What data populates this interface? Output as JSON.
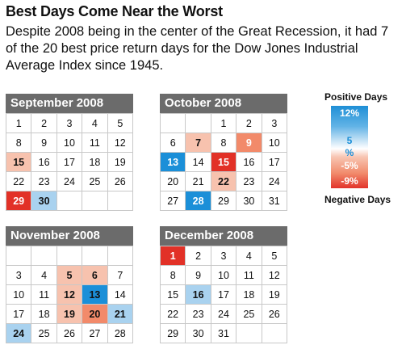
{
  "title": "Best Days Come Near the Worst",
  "subtitle": "Despite 2008 being in the center of the Great Recession, it had 7 of the 20 best price return days for the Dow Jones Industrial Average Index since 1945.",
  "legend": {
    "positive_label": "Positive Days",
    "negative_label": "Negative Days",
    "ticks": [
      "12%",
      "5",
      "%",
      "-5%",
      "-9%"
    ]
  },
  "colors": {
    "strong_blue": "#1b8fd8",
    "light_blue": "#a9d2ef",
    "light_red": "#f7c2ae",
    "mid_red": "#f28a6a",
    "strong_red": "#e23127",
    "header_grey": "#6b6b6b"
  },
  "calendars": [
    {
      "month": "September 2008",
      "cells": [
        {
          "d": "1"
        },
        {
          "d": "2"
        },
        {
          "d": "3"
        },
        {
          "d": "4"
        },
        {
          "d": "5"
        },
        {
          "d": "8"
        },
        {
          "d": "9"
        },
        {
          "d": "10"
        },
        {
          "d": "11"
        },
        {
          "d": "12"
        },
        {
          "d": "15",
          "c": "light_red",
          "b": true
        },
        {
          "d": "16"
        },
        {
          "d": "17"
        },
        {
          "d": "18"
        },
        {
          "d": "19"
        },
        {
          "d": "22"
        },
        {
          "d": "23"
        },
        {
          "d": "24"
        },
        {
          "d": "25"
        },
        {
          "d": "26"
        },
        {
          "d": "29",
          "c": "strong_red",
          "b": true,
          "w": true
        },
        {
          "d": "30",
          "c": "light_blue",
          "b": true
        },
        {
          "d": ""
        },
        {
          "d": ""
        },
        {
          "d": ""
        }
      ]
    },
    {
      "month": "October 2008",
      "cells": [
        {
          "d": ""
        },
        {
          "d": ""
        },
        {
          "d": "1"
        },
        {
          "d": "2"
        },
        {
          "d": "3"
        },
        {
          "d": "6"
        },
        {
          "d": "7",
          "c": "light_red",
          "b": true
        },
        {
          "d": "8"
        },
        {
          "d": "9",
          "c": "mid_red",
          "b": true,
          "w": true
        },
        {
          "d": "10"
        },
        {
          "d": "13",
          "c": "strong_blue",
          "b": true,
          "w": true
        },
        {
          "d": "14"
        },
        {
          "d": "15",
          "c": "strong_red",
          "b": true,
          "w": true
        },
        {
          "d": "16"
        },
        {
          "d": "17"
        },
        {
          "d": "20"
        },
        {
          "d": "21"
        },
        {
          "d": "22",
          "c": "light_red",
          "b": true
        },
        {
          "d": "23"
        },
        {
          "d": "24"
        },
        {
          "d": "27"
        },
        {
          "d": "28",
          "c": "strong_blue",
          "b": true,
          "w": true
        },
        {
          "d": "29"
        },
        {
          "d": "30"
        },
        {
          "d": "31"
        }
      ]
    },
    {
      "month": "November 2008",
      "cells": [
        {
          "d": ""
        },
        {
          "d": ""
        },
        {
          "d": ""
        },
        {
          "d": ""
        },
        {
          "d": ""
        },
        {
          "d": "3"
        },
        {
          "d": "4"
        },
        {
          "d": "5",
          "c": "light_red",
          "b": true
        },
        {
          "d": "6",
          "c": "light_red",
          "b": true
        },
        {
          "d": "7"
        },
        {
          "d": "10"
        },
        {
          "d": "11"
        },
        {
          "d": "12",
          "c": "light_red",
          "b": true
        },
        {
          "d": "13",
          "c": "strong_blue",
          "b": true
        },
        {
          "d": "14"
        },
        {
          "d": "17"
        },
        {
          "d": "18"
        },
        {
          "d": "19",
          "c": "light_red",
          "b": true
        },
        {
          "d": "20",
          "c": "mid_red",
          "b": true
        },
        {
          "d": "21",
          "c": "light_blue",
          "b": true
        },
        {
          "d": "24",
          "c": "light_blue",
          "b": true
        },
        {
          "d": "25"
        },
        {
          "d": "26"
        },
        {
          "d": "27"
        },
        {
          "d": "28"
        }
      ]
    },
    {
      "month": "December 2008",
      "cells": [
        {
          "d": "1",
          "c": "strong_red",
          "b": true,
          "w": true
        },
        {
          "d": "2"
        },
        {
          "d": "3"
        },
        {
          "d": "4"
        },
        {
          "d": "5"
        },
        {
          "d": "8"
        },
        {
          "d": "9"
        },
        {
          "d": "10"
        },
        {
          "d": "11"
        },
        {
          "d": "12"
        },
        {
          "d": "15"
        },
        {
          "d": "16",
          "c": "light_blue",
          "b": true
        },
        {
          "d": "17"
        },
        {
          "d": "18"
        },
        {
          "d": "19"
        },
        {
          "d": "22"
        },
        {
          "d": "23"
        },
        {
          "d": "24"
        },
        {
          "d": "25"
        },
        {
          "d": "26"
        },
        {
          "d": "29"
        },
        {
          "d": "30"
        },
        {
          "d": "31"
        },
        {
          "d": ""
        },
        {
          "d": ""
        }
      ]
    }
  ]
}
